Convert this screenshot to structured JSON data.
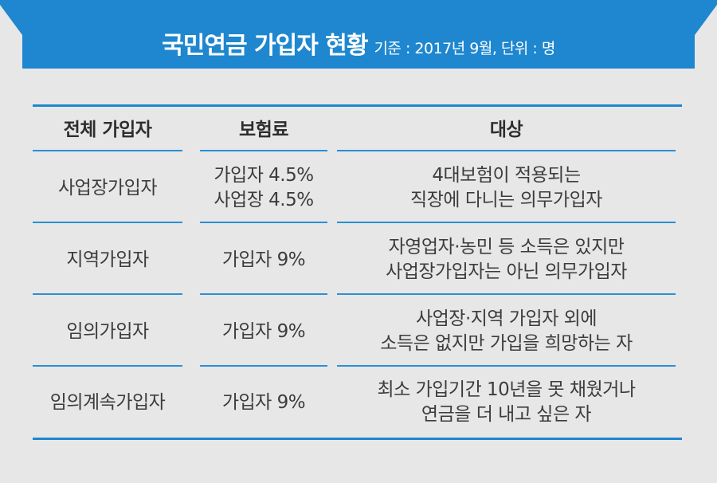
{
  "header": {
    "title": "국민연금 가입자 현황",
    "subtitle": "기준 : 2017년 9월, 단위 : 명"
  },
  "table": {
    "headers": [
      "전체 가입자",
      "보험료",
      "대상"
    ],
    "rows": [
      {
        "type": "사업장가입자",
        "premium": [
          "가입자 4.5%",
          "사업장 4.5%"
        ],
        "target": [
          "4대보험이 적용되는",
          "직장에 다니는 의무가입자"
        ]
      },
      {
        "type": "지역가입자",
        "premium": [
          "가입자 9%"
        ],
        "target": [
          "자영업자·농민 등 소득은 있지만",
          "사업장가입자는 아닌 의무가입자"
        ]
      },
      {
        "type": "임의가입자",
        "premium": [
          "가입자 9%"
        ],
        "target": [
          "사업장·지역 가입자 외에",
          "소득은 없지만 가입을 희망하는 자"
        ]
      },
      {
        "type": "임의계속가입자",
        "premium": [
          "가입자 9%"
        ],
        "target": [
          "최소 가입기간 10년을 못 채웠거나",
          "연금을 더 내고 싶은 자"
        ]
      }
    ]
  },
  "colors": {
    "accent": "#1e87cf",
    "background": "#e7e7e8",
    "text": "#3c3c3c"
  }
}
